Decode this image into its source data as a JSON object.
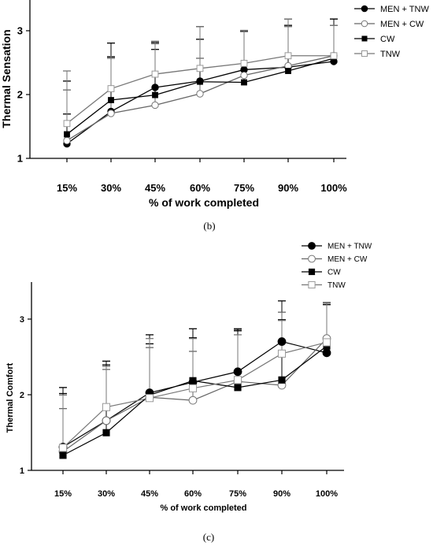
{
  "chart_data": [
    {
      "type": "line",
      "panel_label": "(b)",
      "title": "",
      "xlabel": "% of work completed",
      "ylabel": "Thermal Sensation",
      "categories": [
        "15%",
        "30%",
        "45%",
        "60%",
        "75%",
        "90%",
        "100%"
      ],
      "ylim": [
        1,
        3.5
      ],
      "yticks": [
        "1",
        "2",
        "3"
      ],
      "grid": false,
      "legend_position": "top-right",
      "series": [
        {
          "name": "MEN + TNW",
          "marker": "filled-circle",
          "values": [
            1.23,
            1.74,
            2.12,
            2.22,
            2.4,
            2.44,
            2.53
          ],
          "error_upper": [
            0.0,
            0.0,
            0.0,
            0.0,
            0.0,
            0.0,
            0.0
          ]
        },
        {
          "name": "MEN + CW",
          "marker": "open-circle",
          "values": [
            1.28,
            1.71,
            1.84,
            2.02,
            2.31,
            2.46,
            2.62
          ],
          "error_upper": [
            0.0,
            0.0,
            0.0,
            0.0,
            0.0,
            0.0,
            0.0
          ]
        },
        {
          "name": "CW",
          "marker": "filled-square",
          "values": [
            1.38,
            1.92,
            2.0,
            2.21,
            2.2,
            2.38,
            2.58
          ],
          "error_upper": [
            0.0,
            0.0,
            0.0,
            0.0,
            0.0,
            0.0,
            0.0
          ]
        },
        {
          "name": "TNW",
          "marker": "open-square",
          "values": [
            1.55,
            2.1,
            2.33,
            2.42,
            2.5,
            2.62,
            2.62
          ],
          "error_upper": [
            0.0,
            0.0,
            0.0,
            0.0,
            0.0,
            0.0,
            0.0
          ]
        }
      ],
      "error_bar_tops": {
        "MEN + TNW": [
          2.22,
          2.6,
          2.72,
          2.88,
          3.01,
          3.1,
          3.1
        ],
        "MEN + CW": [
          2.08,
          2.58,
          2.81,
          2.58,
          3.0,
          3.08,
          3.2
        ],
        "CW": [
          1.7,
          2.82,
          2.83,
          3.08,
          3.02,
          3.2,
          3.2
        ],
        "TNW": [
          2.38,
          2.61,
          2.85,
          3.08,
          3.02,
          3.2,
          3.1
        ]
      }
    },
    {
      "type": "line",
      "panel_label": "(c)",
      "title": "",
      "xlabel": "% of work completed",
      "ylabel": "Thermal Comfort",
      "categories": [
        "15%",
        "30%",
        "45%",
        "60%",
        "75%",
        "90%",
        "100%"
      ],
      "ylim": [
        1,
        3.5
      ],
      "yticks": [
        "1",
        "2",
        "3"
      ],
      "grid": false,
      "legend_position": "top-right",
      "series": [
        {
          "name": "MEN + TNW",
          "marker": "filled-circle",
          "values": [
            1.31,
            1.66,
            2.03,
            2.17,
            2.31,
            2.71,
            2.56
          ]
        },
        {
          "name": "MEN + CW",
          "marker": "open-circle",
          "values": [
            1.25,
            1.66,
            1.97,
            1.93,
            2.18,
            2.13,
            2.75
          ]
        },
        {
          "name": "CW",
          "marker": "filled-square",
          "values": [
            1.2,
            1.5,
            2.0,
            2.19,
            2.1,
            2.2,
            2.65
          ]
        },
        {
          "name": "TNW",
          "marker": "open-square",
          "values": [
            1.3,
            1.84,
            1.96,
            2.09,
            2.2,
            2.55,
            2.7
          ]
        }
      ],
      "error_bar_tops": {
        "MEN + TNW": [
          2.1,
          2.4,
          2.8,
          2.88,
          2.88,
          3.25,
          3.2
        ],
        "MEN + CW": [
          1.82,
          2.34,
          2.63,
          2.58,
          2.85,
          3.1,
          3.23
        ],
        "CW": [
          2.02,
          2.45,
          2.68,
          2.76,
          2.86,
          3.0,
          3.22
        ],
        "TNW": [
          2.0,
          2.38,
          2.75,
          2.75,
          2.8,
          2.99,
          3.22
        ]
      }
    }
  ]
}
